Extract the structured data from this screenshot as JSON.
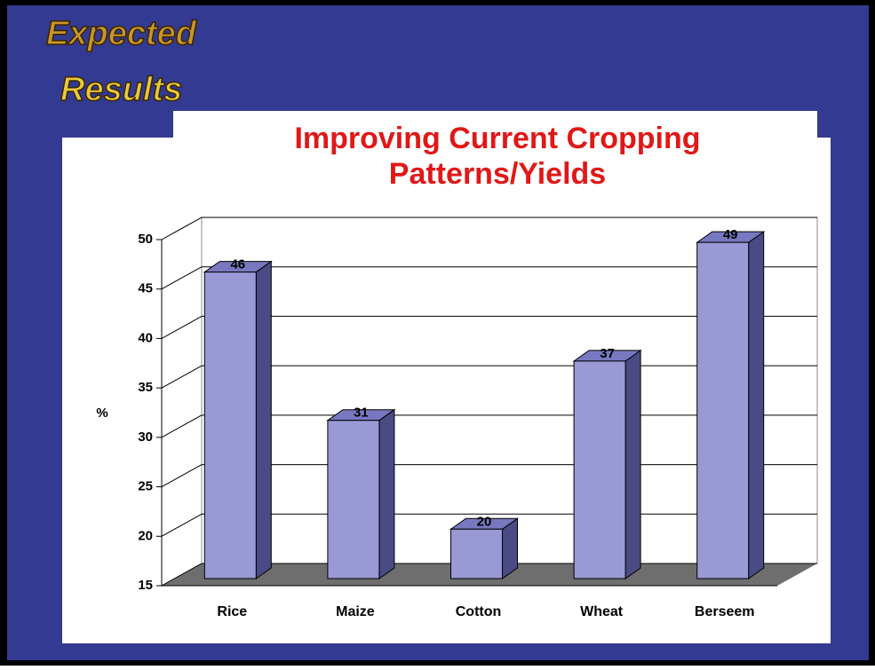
{
  "slide": {
    "heading": [
      "Expected",
      "Results"
    ]
  },
  "chart_data": {
    "type": "bar3d",
    "title": [
      "Improving Current Cropping",
      "Patterns/Yields"
    ],
    "y_label": "%",
    "categories": [
      "Rice",
      "Maize",
      "Cotton",
      "Wheat",
      "Berseem"
    ],
    "values": [
      46,
      31,
      20,
      37,
      49
    ],
    "color": "#9999d6",
    "ylim": [
      15,
      50
    ],
    "yticks": [
      15,
      20,
      25,
      30,
      35,
      40,
      45,
      50
    ],
    "grid": true
  }
}
